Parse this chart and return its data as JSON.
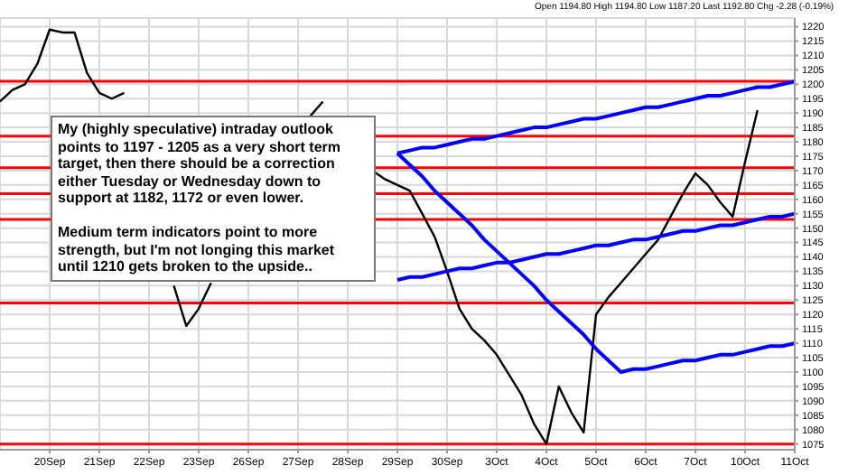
{
  "chart_data": {
    "type": "line",
    "categories": [
      null,
      null,
      null,
      null,
      "20Sep",
      null,
      null,
      null,
      "21Sep",
      null,
      null,
      null,
      "22Sep",
      null,
      null,
      null,
      "23Sep",
      null,
      null,
      null,
      "26Sep",
      null,
      null,
      null,
      "27Sep",
      null,
      null,
      null,
      "28Sep",
      null,
      null,
      null,
      "29Sep",
      null,
      null,
      null,
      "30Sep",
      null,
      null,
      null,
      "3Oct",
      null,
      null,
      null,
      "4Oct",
      null,
      null,
      null,
      "5Oct",
      null,
      null,
      null,
      "6Oct",
      null,
      null,
      null,
      "7Oct",
      null,
      null,
      null,
      "10Oct",
      null,
      null,
      null,
      "11Oct"
    ],
    "ylim": [
      1073,
      1223
    ],
    "yticks": [
      1075,
      1080,
      1085,
      1090,
      1095,
      1100,
      1105,
      1110,
      1115,
      1120,
      1125,
      1130,
      1135,
      1140,
      1145,
      1150,
      1155,
      1160,
      1165,
      1170,
      1175,
      1180,
      1185,
      1190,
      1195,
      1200,
      1205,
      1210,
      1215,
      1220
    ],
    "grid": true,
    "marker": "none",
    "line_style": "solid",
    "series": [
      {
        "color": "#000000",
        "values": [
          1194,
          1198,
          1200,
          1207,
          1219,
          1218,
          1218,
          1204,
          1197,
          1195,
          1197,
          null,
          null,
          null,
          1130,
          1116,
          1122,
          1131,
          null,
          null,
          null,
          null,
          null,
          null,
          null,
          1189,
          1194,
          null,
          null,
          null,
          1170,
          1167,
          1165,
          1163,
          1155,
          1147,
          1135,
          1122,
          1115,
          1111,
          1106,
          1099,
          1092,
          1082,
          1075,
          1095,
          1086,
          1079,
          1120,
          1126,
          1131,
          1136,
          1141,
          1146,
          1154,
          1162,
          1169,
          1165,
          1159,
          1154,
          1173,
          1191,
          null,
          null,
          null
        ]
      },
      {
        "color": "#0000ff",
        "values": [
          null,
          null,
          null,
          null,
          null,
          null,
          null,
          null,
          null,
          null,
          null,
          null,
          null,
          null,
          null,
          null,
          null,
          null,
          null,
          null,
          null,
          null,
          null,
          null,
          null,
          null,
          null,
          null,
          null,
          null,
          null,
          null,
          1176,
          1172,
          1168,
          1163,
          1159,
          1155,
          1151,
          1146,
          1142,
          1138,
          1134,
          1130,
          1125,
          1121,
          1117,
          1113,
          1108,
          1104,
          1100,
          1101,
          1101,
          1102,
          1103,
          1104,
          1104,
          1105,
          1106,
          1106,
          1107,
          1108,
          1109,
          1109,
          1110
        ]
      },
      {
        "color": "#0000ff",
        "values": [
          null,
          null,
          null,
          null,
          null,
          null,
          null,
          null,
          null,
          null,
          null,
          null,
          null,
          null,
          null,
          null,
          null,
          null,
          null,
          null,
          null,
          null,
          null,
          null,
          null,
          null,
          null,
          null,
          null,
          null,
          null,
          null,
          1176,
          1177,
          1178,
          1178,
          1179,
          1180,
          1181,
          1181,
          1182,
          1183,
          1184,
          1185,
          1185,
          1186,
          1187,
          1188,
          1188,
          1189,
          1190,
          1191,
          1192,
          1192,
          1193,
          1194,
          1195,
          1196,
          1196,
          1197,
          1198,
          1199,
          1199,
          1200,
          1201
        ]
      },
      {
        "color": "#0000ff",
        "values": [
          null,
          null,
          null,
          null,
          null,
          null,
          null,
          null,
          null,
          null,
          null,
          null,
          null,
          null,
          null,
          null,
          null,
          null,
          null,
          null,
          null,
          null,
          null,
          null,
          null,
          null,
          null,
          null,
          null,
          null,
          null,
          null,
          1132,
          1133,
          1133,
          1134,
          1135,
          1136,
          1136,
          1137,
          1138,
          1138,
          1139,
          1140,
          1141,
          1141,
          1142,
          1143,
          1144,
          1144,
          1145,
          1146,
          1146,
          1147,
          1148,
          1149,
          1149,
          1150,
          1151,
          1151,
          1152,
          1153,
          1154,
          1154,
          1155
        ]
      }
    ],
    "ref_lines": [
      {
        "axis": "y",
        "value": 1201,
        "color": "#ff0000"
      },
      {
        "axis": "y",
        "value": 1182,
        "color": "#ff0000"
      },
      {
        "axis": "y",
        "value": 1171,
        "color": "#ff0000"
      },
      {
        "axis": "y",
        "value": 1162,
        "color": "#ff0000"
      },
      {
        "axis": "y",
        "value": 1153,
        "color": "#ff0000"
      },
      {
        "axis": "y",
        "value": 1124,
        "color": "#ff0000"
      },
      {
        "axis": "y",
        "value": 1075,
        "color": "#ff0000"
      }
    ],
    "annotations": [
      "Open 1194.80 High 1194.80 Low 1187.20 Last 1192.80 Chg -2.28 (-0.19%)",
      "My (highly speculative) intraday outlook points to 1197 - 1205 as a very short term target, then there should be a correction either Tuesday or Wednesday down to support at 1182, 1172 or even lower.",
      "Medium term indicators point to more strength, but I'm not longing this market until 1210 gets broken to the upside.."
    ]
  }
}
